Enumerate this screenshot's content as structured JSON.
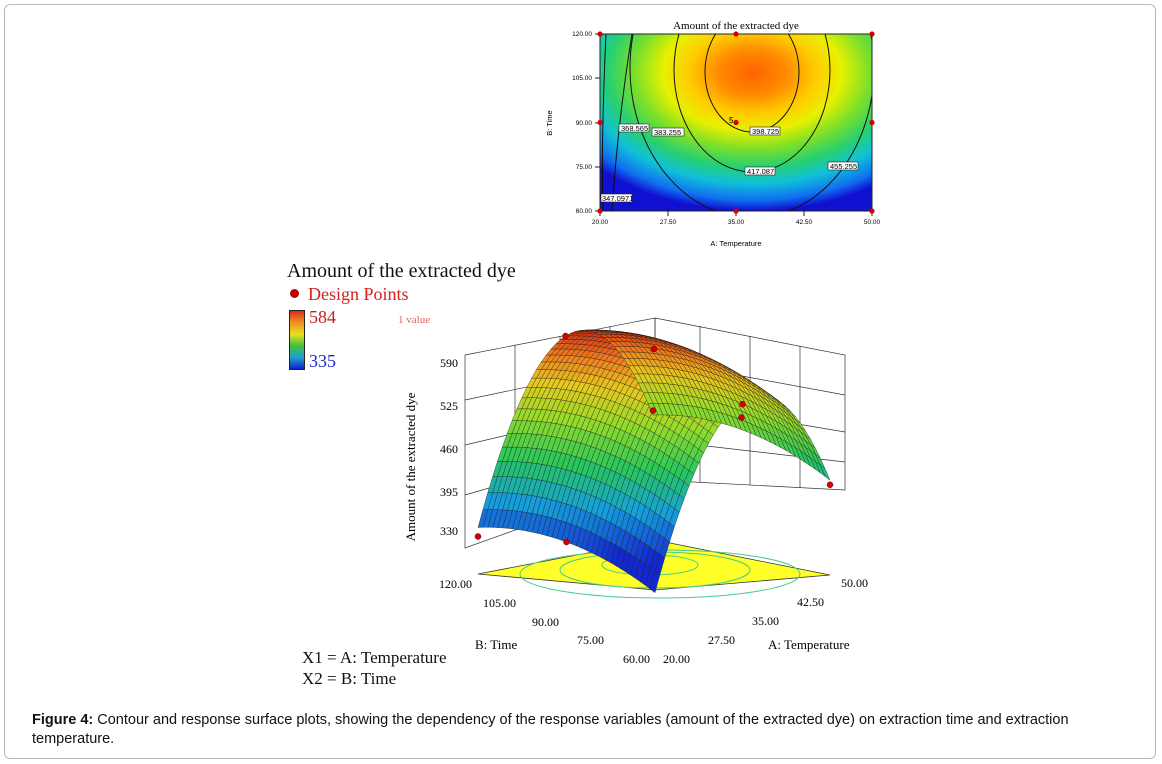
{
  "contour": {
    "title": "Amount of the extracted dye",
    "xlabel": "A: Temperature",
    "ylabel": "B: Time",
    "x_ticks": [
      "20.00",
      "27.50",
      "35.00",
      "42.50",
      "50.00"
    ],
    "y_ticks": [
      "60.00",
      "75.00",
      "90.00",
      "105.00",
      "120.00"
    ],
    "contour_labels": [
      "368.565",
      "383.255",
      "398.725",
      "417.087",
      "439.673",
      "455.255",
      "347.0971"
    ],
    "replicate_label": "5"
  },
  "surface": {
    "legend_title": "Amount of the extracted dye",
    "legend_design_points": "Design Points",
    "colorbar_max": "584",
    "colorbar_min": "335",
    "x_value_label": "1 value",
    "zlabel": "Amount of the extracted dye",
    "z_ticks": [
      "590",
      "525",
      "460",
      "395",
      "330"
    ],
    "time_label": "B: Time",
    "time_ticks": [
      "120.00",
      "105.00",
      "90.00",
      "75.00",
      "60.00"
    ],
    "temp_label": "A: Temperature",
    "temp_ticks": [
      "20.00",
      "27.50",
      "35.00",
      "42.50",
      "50.00"
    ],
    "definitions": [
      "X1 = A: Temperature",
      "X2 = B: Time"
    ]
  },
  "caption": {
    "label": "Figure 4:",
    "text": "Contour and response surface plots, showing the dependency of the response variables (amount of the extracted dye) on extraction time and extraction temperature."
  },
  "chart_data": [
    {
      "type": "heatmap",
      "title": "Amount of the extracted dye",
      "xlabel": "A: Temperature",
      "ylabel": "B: Time",
      "xlim": [
        20,
        50
      ],
      "ylim": [
        60,
        120
      ],
      "x_ticks": [
        20,
        27.5,
        35,
        42.5,
        50
      ],
      "y_ticks": [
        60,
        75,
        90,
        105,
        120
      ],
      "contour_levels": [
        347.0971,
        368.565,
        383.255,
        398.725,
        417.087,
        439.673,
        455.255
      ],
      "design_points": [
        [
          20,
          60
        ],
        [
          20,
          90
        ],
        [
          20,
          120
        ],
        [
          35,
          60
        ],
        [
          35,
          90
        ],
        [
          35,
          120
        ],
        [
          50,
          60
        ],
        [
          50,
          90
        ],
        [
          50,
          120
        ]
      ],
      "colors": {
        "low": "#1020d0",
        "mid": "#40c040",
        "high": "#ff6000"
      }
    },
    {
      "type": "surface",
      "title": "Amount of the extracted dye",
      "xlabel": "A: Temperature",
      "ylabel": "B: Time",
      "zlabel": "Amount of the extracted dye",
      "xlim": [
        20,
        50
      ],
      "ylim": [
        60,
        120
      ],
      "zlim": [
        330,
        590
      ],
      "z_ticks": [
        330,
        395,
        460,
        525,
        590
      ],
      "colorbar": {
        "min": 335,
        "max": 584
      },
      "grid": true
    }
  ]
}
